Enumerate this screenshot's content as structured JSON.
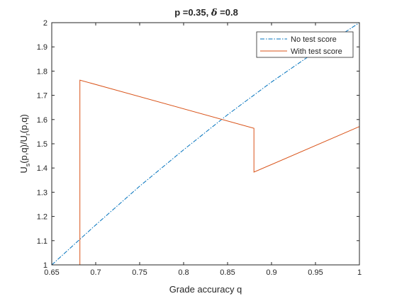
{
  "chart_data": {
    "type": "line",
    "title_parts": {
      "pre": "p =0.35, ",
      "symbol": "δ",
      "post": " =0.8"
    },
    "xlabel": "Grade accuracy q",
    "ylabel": {
      "main": "U",
      "sub1": "s",
      "mid": "(p,q)/U",
      "sub2": "r",
      "end": "(p,q)"
    },
    "xlim": [
      0.65,
      1.0
    ],
    "ylim": [
      1.0,
      2.0
    ],
    "xticks": [
      0.65,
      0.7,
      0.75,
      0.8,
      0.85,
      0.9,
      0.95,
      1.0
    ],
    "xtick_labels": [
      "0.65",
      "0.7",
      "0.75",
      "0.8",
      "0.85",
      "0.9",
      "0.95",
      "1"
    ],
    "yticks": [
      1.0,
      1.1,
      1.2,
      1.3,
      1.4,
      1.5,
      1.6,
      1.7,
      1.8,
      1.9,
      2.0
    ],
    "ytick_labels": [
      "1",
      "1.1",
      "1.2",
      "1.3",
      "1.4",
      "1.5",
      "1.6",
      "1.7",
      "1.8",
      "1.9",
      "2"
    ],
    "grid": false,
    "legend_position": "top-right",
    "series": [
      {
        "name": "No test score",
        "color": "#0072BD",
        "style": "dashdot",
        "x": [
          0.65,
          0.7,
          0.75,
          0.8,
          0.85,
          0.9,
          0.95,
          1.0
        ],
        "y": [
          1.0,
          1.165,
          1.325,
          1.475,
          1.62,
          1.755,
          1.88,
          2.0
        ]
      },
      {
        "name": "With test score",
        "color": "#D95319",
        "style": "solid",
        "x": [
          0.65,
          0.682,
          0.682,
          0.88,
          0.88,
          1.0
        ],
        "y": [
          1.0,
          1.0,
          1.763,
          1.564,
          1.383,
          1.571
        ]
      }
    ]
  }
}
